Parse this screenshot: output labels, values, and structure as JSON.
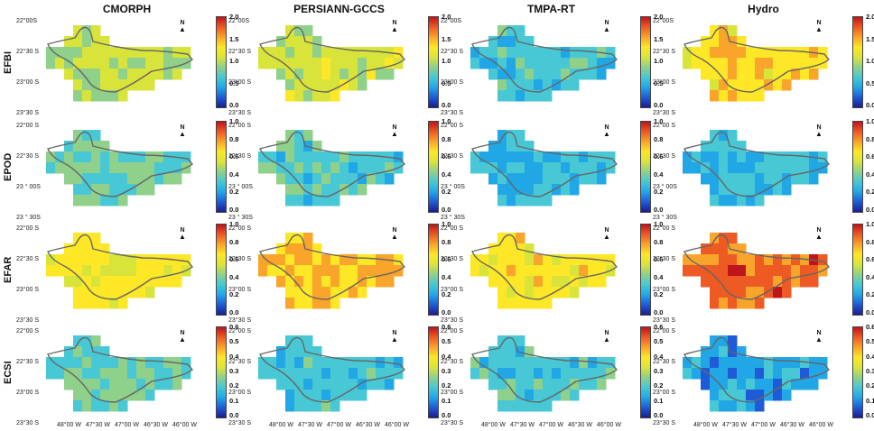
{
  "columns": [
    "CMORPH",
    "PERSIANN-GCCS",
    "TMPA-RT",
    "Hydro"
  ],
  "rows": [
    {
      "label": "EFBI",
      "lat_labels": [
        "22°00S",
        "22°30 S",
        "23°00 S",
        "23°30 S"
      ],
      "cb_ticks": [
        "2.0",
        "1.5",
        "1.0",
        "0.5",
        "0.0"
      ],
      "cb_max": 2.0
    },
    {
      "label": "EPOD",
      "lat_labels": [
        "22°00 S",
        "22°30 S",
        "23 ° 00S",
        "23 ° 30S"
      ],
      "cb_ticks": [
        "1.0",
        "0.8",
        "0.6",
        "0.4",
        "0.2",
        "0.0"
      ],
      "cb_max": 1.0
    },
    {
      "label": "EFAR",
      "lat_labels": [
        "22°00 S",
        "22°30 S",
        "23°00 S",
        "23°30 S"
      ],
      "cb_ticks": [
        "1.0",
        "0.8",
        "0.6",
        "0.4",
        "0.2",
        "0.0"
      ],
      "cb_max": 1.0
    },
    {
      "label": "ECSI",
      "lat_labels": [
        "22°00 S",
        "22°30 S",
        "23°00 S",
        "23°30 S"
      ],
      "cb_ticks": [
        "0.6",
        "0.5",
        "0.4",
        "0.3",
        "0.2",
        "0.1",
        "0.0"
      ],
      "cb_max": 0.6
    }
  ],
  "lon_labels": [
    "48°00 W",
    "47°30 W",
    "47°00 W",
    "46°30 W",
    "46°00 W"
  ],
  "north_label": "N",
  "colormap": [
    "#1b1d8f",
    "#1f5bd6",
    "#21a7e6",
    "#47c8d4",
    "#8fd08a",
    "#d9e43a",
    "#fde726",
    "#f9a42a",
    "#ee5a24",
    "#c0141c"
  ],
  "map_levels": {
    "EFBI": {
      "CMORPH": 0.52,
      "PERSIANN-GCCS": 0.55,
      "TMPA-RT": 0.34,
      "Hydro": 0.66
    },
    "EPOD": {
      "CMORPH": 0.4,
      "PERSIANN-GCCS": 0.36,
      "TMPA-RT": 0.31,
      "Hydro": 0.31
    },
    "EFAR": {
      "CMORPH": 0.62,
      "PERSIANN-GCCS": 0.7,
      "TMPA-RT": 0.64,
      "Hydro": 0.83
    },
    "ECSI": {
      "CMORPH": 0.41,
      "PERSIANN-GCCS": 0.34,
      "TMPA-RT": 0.36,
      "Hydro": 0.25
    }
  }
}
